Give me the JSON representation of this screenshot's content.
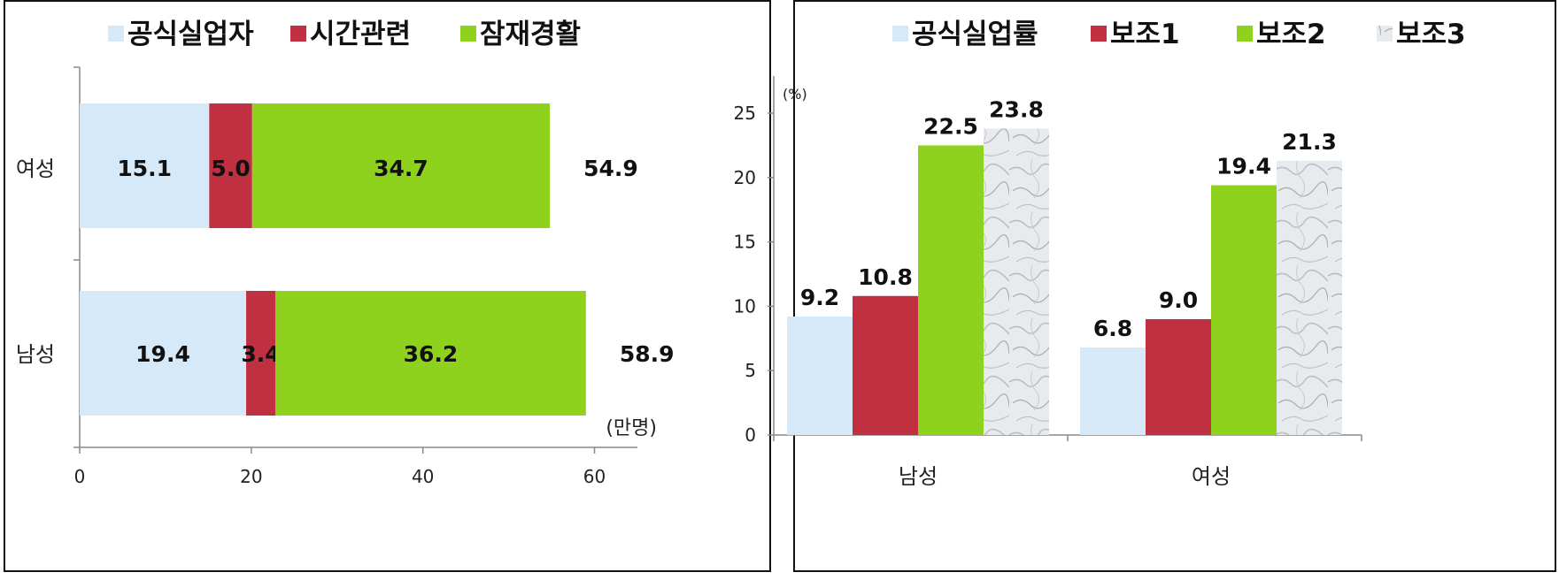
{
  "chart_data": [
    {
      "type": "bar",
      "orientation": "horizontal",
      "stacked": true,
      "categories": [
        "여성",
        "남성"
      ],
      "series": [
        {
          "name": "공식실업자",
          "values": [
            15.1,
            19.4
          ],
          "color": "#d6e9f8"
        },
        {
          "name": "시간관련",
          "values": [
            5.0,
            3.4
          ],
          "color": "#c13040"
        },
        {
          "name": "잠재경활",
          "values": [
            34.7,
            36.2
          ],
          "color": "#8fd21e"
        }
      ],
      "totals": [
        54.9,
        58.9
      ],
      "xlim": [
        0,
        65
      ],
      "xticks": [
        0,
        20,
        40,
        60
      ],
      "unit": "(만명)",
      "legend": "top",
      "grid": false
    },
    {
      "type": "bar",
      "orientation": "vertical",
      "stacked": false,
      "categories": [
        "남성",
        "여성"
      ],
      "series": [
        {
          "name": "공식실업률",
          "values": [
            9.2,
            6.8
          ],
          "color": "#d6e9f8"
        },
        {
          "name": "보조1",
          "values": [
            10.8,
            9.0
          ],
          "color": "#c13040"
        },
        {
          "name": "보조2",
          "values": [
            22.5,
            19.4
          ],
          "color": "#8fd21e"
        },
        {
          "name": "보조3",
          "values": [
            23.8,
            21.3
          ],
          "color": "#e4e7ea"
        }
      ],
      "ylim": [
        0,
        25
      ],
      "yticks": [
        0,
        5,
        10,
        15,
        20,
        25
      ],
      "unit": "(%)",
      "legend": "top",
      "grid": false
    }
  ]
}
